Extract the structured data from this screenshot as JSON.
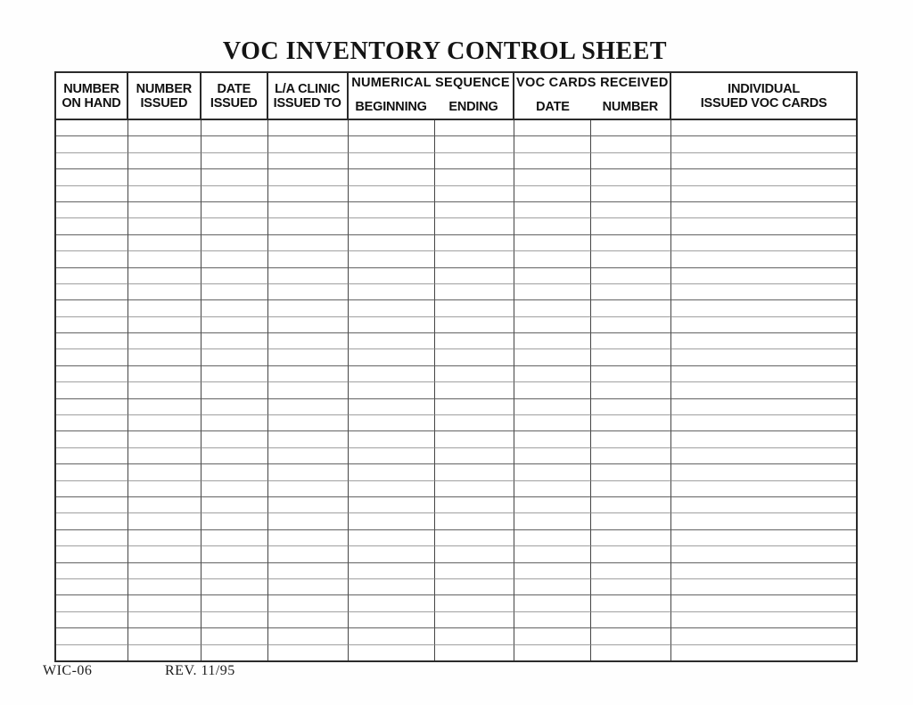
{
  "title": "VOC INVENTORY CONTROL SHEET",
  "table": {
    "row_count": 33,
    "column_count": 9,
    "header": {
      "number_on_hand": {
        "line1": "NUMBER",
        "line2": "ON HAND"
      },
      "number_issued": {
        "line1": "NUMBER",
        "line2": "ISSUED"
      },
      "date_issued": {
        "line1": "DATE",
        "line2": "ISSUED"
      },
      "la_clinic": {
        "line1": "L/A CLINIC",
        "line2": "ISSUED TO"
      },
      "numerical_sequence": {
        "group": "NUMERICAL SEQUENCE",
        "sub_beginning": "BEGINNING",
        "sub_ending": "ENDING"
      },
      "voc_cards_received": {
        "group": "VOC CARDS RECEIVED",
        "sub_date": "DATE",
        "sub_number": "NUMBER"
      },
      "individual_issued": {
        "line1": "INDIVIDUAL",
        "line2": "ISSUED VOC CARDS"
      }
    }
  },
  "footer": {
    "form_number": "WIC-06",
    "revision": "REV. 11/95"
  },
  "colors": {
    "ink": "#141414",
    "border_dark": "#2b2b2b",
    "grid_vertical": "#454545",
    "grid_horizontal_light": "#a0a0a0",
    "grid_horizontal_dark": "#636363",
    "paper": "#fefefe"
  }
}
